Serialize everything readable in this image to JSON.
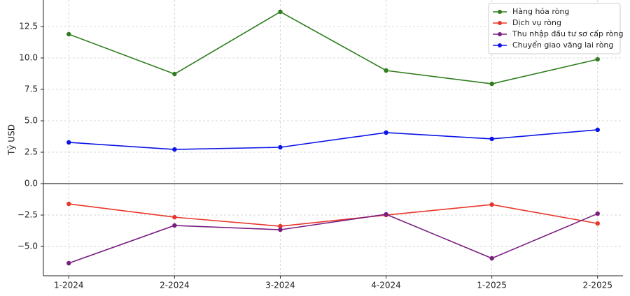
{
  "chart_data": {
    "type": "line",
    "y_label": "Tỷ USD",
    "categories": [
      "1-2024",
      "2-2024",
      "3-2024",
      "4-2024",
      "1-2025",
      "2-2025"
    ],
    "series": [
      {
        "name": "Hàng hóa ròng",
        "color": "#2e7d1f",
        "values": [
          11.89,
          8.72,
          13.67,
          9.0,
          7.94,
          9.89
        ]
      },
      {
        "name": "Dịch vụ ròng",
        "color": "#e8362a",
        "values": [
          -1.61,
          -2.67,
          -3.39,
          -2.5,
          -1.67,
          -3.17
        ]
      },
      {
        "name": "Thu nhập đầu tư sơ cấp ròng",
        "color": "#7a1f82",
        "values": [
          -6.33,
          -3.33,
          -3.67,
          -2.44,
          -5.94,
          -2.39
        ]
      },
      {
        "name": "Chuyển giao vãng lai ròng",
        "color": "#0a14e6",
        "values": [
          3.28,
          2.72,
          2.89,
          4.06,
          3.56,
          4.28
        ]
      }
    ],
    "ylim": [
      -7.33,
      14.61
    ],
    "yticks": [
      12.5,
      {
        "value": 10,
        "label": "10.0"
      },
      7.5,
      {
        "value": 5,
        "label": "5.0"
      },
      2.5,
      {
        "value": 0,
        "label": "0.0"
      },
      {
        "value": -2.5,
        "label": "−2.5"
      },
      {
        "value": -5,
        "label": "−5.0"
      }
    ],
    "grid": true,
    "zero_line": true,
    "legend": "upper right"
  }
}
